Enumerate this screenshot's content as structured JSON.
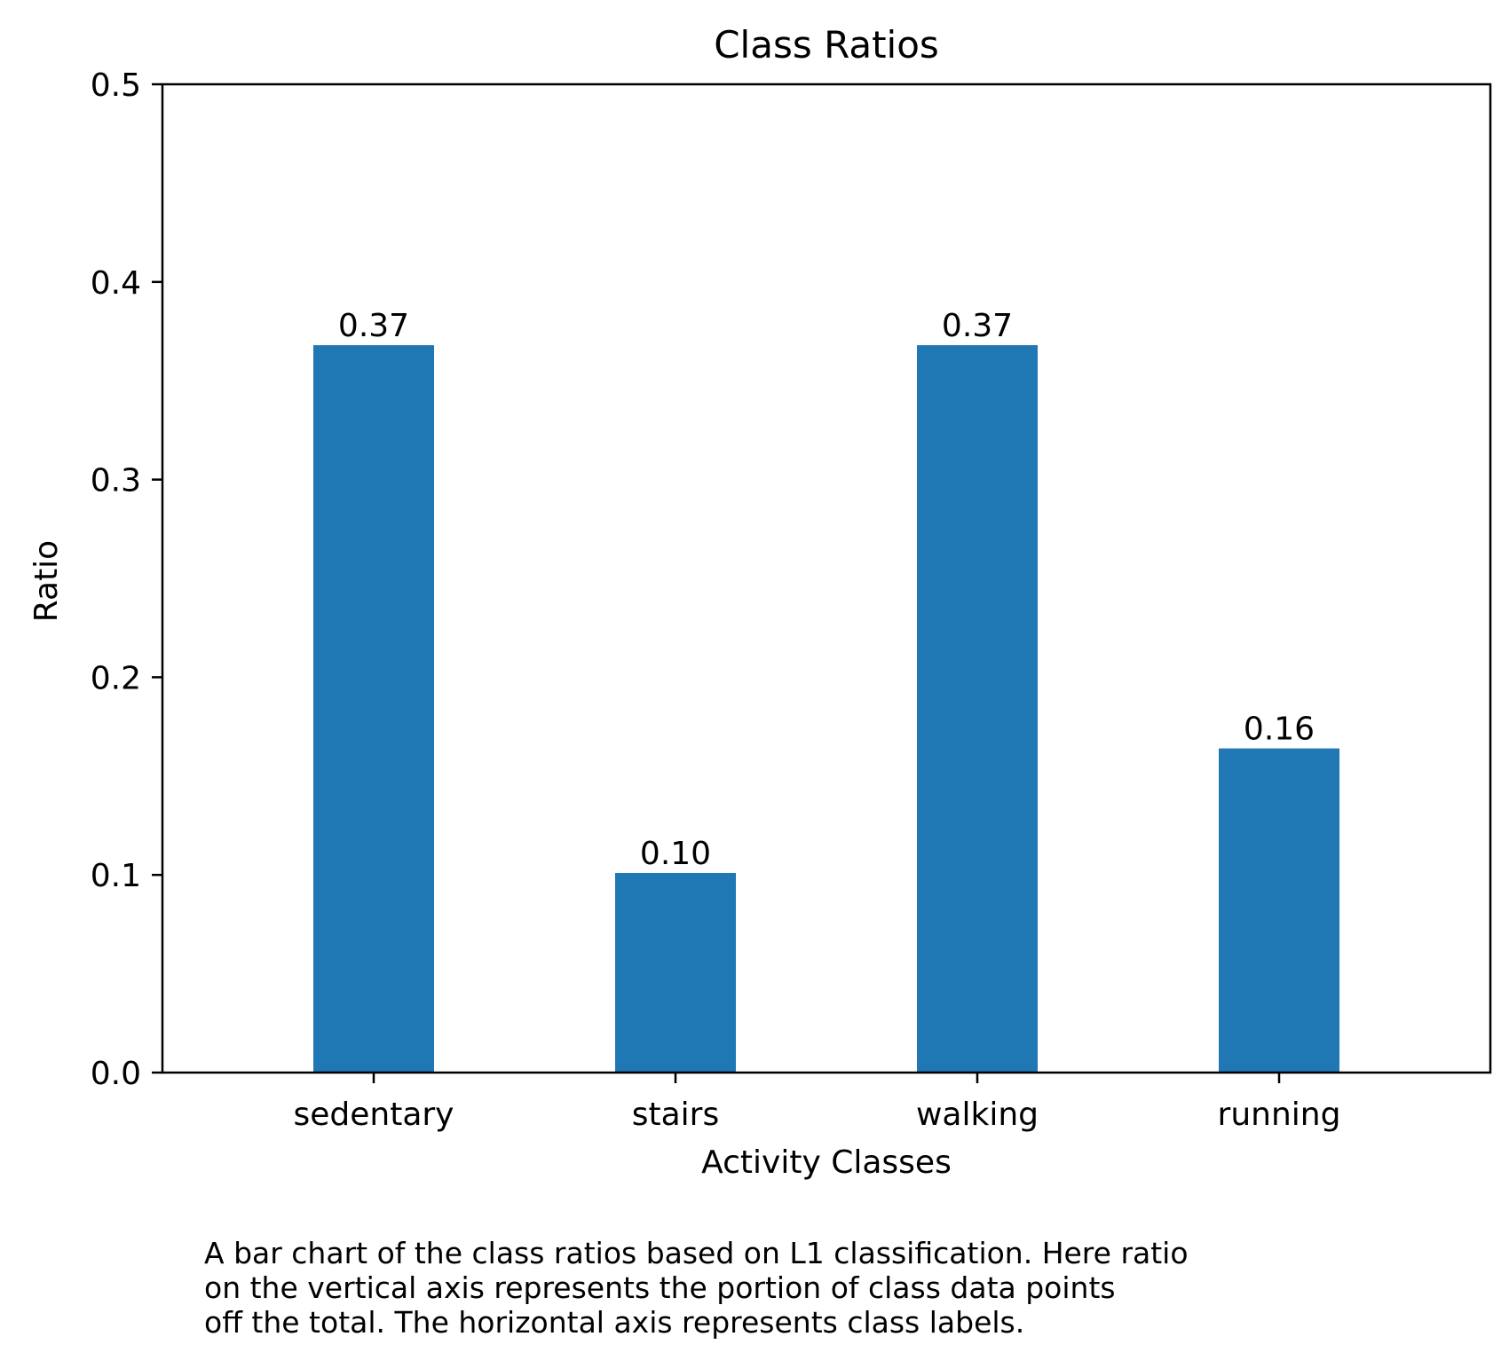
{
  "chart_data": {
    "type": "bar",
    "title": "Class Ratios",
    "xlabel": "Activity Classes",
    "ylabel": "Ratio",
    "categories": [
      "sedentary",
      "stairs",
      "walking",
      "running"
    ],
    "values": [
      0.368,
      0.101,
      0.368,
      0.164
    ],
    "data_labels": [
      "0.37",
      "0.10",
      "0.37",
      "0.16"
    ],
    "ylim": [
      0,
      0.5
    ],
    "yticks": [
      0.0,
      0.1,
      0.2,
      0.3,
      0.4,
      0.5
    ],
    "ytick_labels": [
      "0.0",
      "0.1",
      "0.2",
      "0.3",
      "0.4",
      "0.5"
    ],
    "grid": false,
    "bar_color": "#1f77b4"
  },
  "caption": {
    "lines": [
      "A bar chart of the class ratios based on L1 classification. Here ratio",
      "on the vertical axis represents the portion of class data points",
      "off the total. The horizontal axis represents class labels."
    ]
  }
}
